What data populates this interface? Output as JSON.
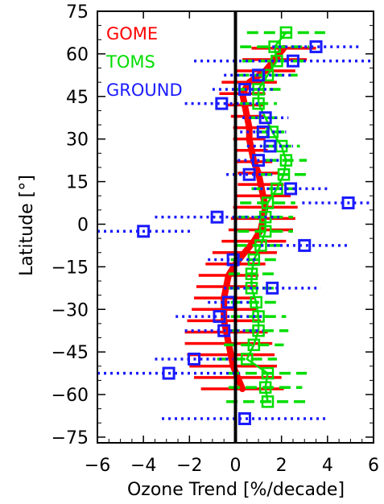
{
  "chart_data": {
    "type": "scatter",
    "title": "",
    "xlabel": "Ozone Trend [%/decade]",
    "ylabel": "Latitude [°]",
    "xlim": [
      -6,
      6
    ],
    "ylim": [
      -77,
      75
    ],
    "xticks": [
      "−6",
      "−4",
      "−2",
      "0",
      "2",
      "4",
      "6"
    ],
    "xtick_values": [
      -6,
      -4,
      -2,
      0,
      2,
      4,
      6
    ],
    "yticks": [
      "75",
      "60",
      "45",
      "30",
      "15",
      "0",
      "−15",
      "−30",
      "−45",
      "−60",
      "−75"
    ],
    "ytick_values": [
      75,
      60,
      45,
      30,
      15,
      0,
      -15,
      -30,
      -45,
      -60,
      -75
    ],
    "zero_line": 0,
    "legend_position": "top-left",
    "series": [
      {
        "name": "GOME",
        "color": "#ff0000",
        "style": "line with horizontal error bars",
        "points": [
          {
            "lat": 62,
            "x": 2.1,
            "err": 1.4
          },
          {
            "lat": 58,
            "x": 1.7,
            "err": 1.4
          },
          {
            "lat": 54,
            "x": 1.3,
            "err": 1.3
          },
          {
            "lat": 50,
            "x": 0.6,
            "err": 1.2
          },
          {
            "lat": 46,
            "x": 0.3,
            "err": 1.0
          },
          {
            "lat": 42,
            "x": 0.4,
            "err": 0.8
          },
          {
            "lat": 38,
            "x": 0.5,
            "err": 0.7
          },
          {
            "lat": 34,
            "x": 0.6,
            "err": 0.7
          },
          {
            "lat": 30,
            "x": 0.6,
            "err": 0.7
          },
          {
            "lat": 26,
            "x": 0.7,
            "err": 0.7
          },
          {
            "lat": 22,
            "x": 0.8,
            "err": 0.8
          },
          {
            "lat": 18,
            "x": 1.0,
            "err": 0.9
          },
          {
            "lat": 14,
            "x": 1.1,
            "err": 1.0
          },
          {
            "lat": 10,
            "x": 1.2,
            "err": 1.2
          },
          {
            "lat": 6,
            "x": 1.3,
            "err": 1.4
          },
          {
            "lat": 2,
            "x": 1.2,
            "err": 1.4
          },
          {
            "lat": -2,
            "x": 1.1,
            "err": 1.4
          },
          {
            "lat": -6,
            "x": 0.8,
            "err": 1.4
          },
          {
            "lat": -10,
            "x": 0.4,
            "err": 1.4
          },
          {
            "lat": -14,
            "x": 0.0,
            "err": 1.3
          },
          {
            "lat": -18,
            "x": -0.3,
            "err": 1.3
          },
          {
            "lat": -22,
            "x": -0.4,
            "err": 1.3
          },
          {
            "lat": -26,
            "x": -0.5,
            "err": 1.3
          },
          {
            "lat": -30,
            "x": -0.5,
            "err": 1.4
          },
          {
            "lat": -34,
            "x": -0.5,
            "err": 1.6
          },
          {
            "lat": -38,
            "x": -0.4,
            "err": 1.8
          },
          {
            "lat": -42,
            "x": -0.3,
            "err": 1.9
          },
          {
            "lat": -46,
            "x": -0.2,
            "err": 1.9
          },
          {
            "lat": -50,
            "x": -0.1,
            "err": 1.9
          },
          {
            "lat": -54,
            "x": 0.1,
            "err": 1.9
          },
          {
            "lat": -58,
            "x": 0.3,
            "err": 1.8
          }
        ]
      },
      {
        "name": "TOMS",
        "color": "#00dd00",
        "style": "squares with dashed error bars",
        "points": [
          {
            "lat": 67.5,
            "x": 2.2,
            "err": 1.7
          },
          {
            "lat": 62.5,
            "x": 1.7,
            "err": 1.5
          },
          {
            "lat": 57.5,
            "x": 1.8,
            "err": 1.5
          },
          {
            "lat": 52.5,
            "x": 1.4,
            "err": 1.3
          },
          {
            "lat": 47.5,
            "x": 1.0,
            "err": 1.0
          },
          {
            "lat": 42.5,
            "x": 1.0,
            "err": 0.8
          },
          {
            "lat": 37.5,
            "x": 1.3,
            "err": 0.7
          },
          {
            "lat": 32.5,
            "x": 1.6,
            "err": 0.7
          },
          {
            "lat": 27.5,
            "x": 2.0,
            "err": 0.8
          },
          {
            "lat": 22.5,
            "x": 2.2,
            "err": 0.9
          },
          {
            "lat": 17.5,
            "x": 2.1,
            "err": 1.0
          },
          {
            "lat": 12.5,
            "x": 1.8,
            "err": 1.1
          },
          {
            "lat": 7.5,
            "x": 1.4,
            "err": 1.2
          },
          {
            "lat": 2.5,
            "x": 1.3,
            "err": 1.2
          },
          {
            "lat": -2.5,
            "x": 1.3,
            "err": 1.2
          },
          {
            "lat": -7.5,
            "x": 1.1,
            "err": 1.1
          },
          {
            "lat": -12.5,
            "x": 0.8,
            "err": 1.0
          },
          {
            "lat": -17.5,
            "x": 0.7,
            "err": 1.0
          },
          {
            "lat": -22.5,
            "x": 0.7,
            "err": 1.0
          },
          {
            "lat": -27.5,
            "x": 0.9,
            "err": 1.1
          },
          {
            "lat": -32.5,
            "x": 1.0,
            "err": 1.2
          },
          {
            "lat": -37.5,
            "x": 1.0,
            "err": 1.3
          },
          {
            "lat": -42.5,
            "x": 0.8,
            "err": 1.3
          },
          {
            "lat": -47.5,
            "x": 0.5,
            "err": 1.3
          },
          {
            "lat": -52.5,
            "x": 1.4,
            "err": 1.7
          },
          {
            "lat": -57.5,
            "x": 1.3,
            "err": 1.6
          },
          {
            "lat": -62.5,
            "x": 1.4,
            "err": 1.8
          }
        ]
      },
      {
        "name": "GROUND",
        "color": "#1a1aff",
        "style": "squares with dotted error bars",
        "points": [
          {
            "lat": 62.5,
            "x": 3.5,
            "err": 1.9
          },
          {
            "lat": 57.5,
            "x": 2.5,
            "err": 4.3
          },
          {
            "lat": 52.5,
            "x": 1.0,
            "err": 1.5
          },
          {
            "lat": 47.5,
            "x": 0.4,
            "err": 1.4
          },
          {
            "lat": 42.5,
            "x": -0.6,
            "err": 1.6
          },
          {
            "lat": 37.5,
            "x": 1.3,
            "err": 1.0
          },
          {
            "lat": 32.5,
            "x": 1.2,
            "err": 1.0
          },
          {
            "lat": 27.5,
            "x": 1.5,
            "err": 1.0
          },
          {
            "lat": 22.5,
            "x": 1.0,
            "err": 0.9
          },
          {
            "lat": 17.5,
            "x": 0.6,
            "err": 1.0
          },
          {
            "lat": 12.5,
            "x": 2.4,
            "err": 1.6
          },
          {
            "lat": 7.5,
            "x": 4.9,
            "err": 2.0
          },
          {
            "lat": 2.5,
            "x": -0.8,
            "err": 2.7
          },
          {
            "lat": -2.5,
            "x": -4.0,
            "err": 2.2
          },
          {
            "lat": -7.5,
            "x": 3.0,
            "err": 1.9
          },
          {
            "lat": -12.5,
            "x": -0.1,
            "err": 1.1
          },
          {
            "lat": -22.5,
            "x": 1.6,
            "err": 2.1
          },
          {
            "lat": -27.5,
            "x": -0.3,
            "err": 0.9
          },
          {
            "lat": -32.5,
            "x": -0.7,
            "err": 1.9
          },
          {
            "lat": -37.5,
            "x": -0.5,
            "err": 1.7
          },
          {
            "lat": -47.5,
            "x": -1.8,
            "err": 1.7
          },
          {
            "lat": -52.5,
            "x": -2.9,
            "err": 3.1
          },
          {
            "lat": -68.5,
            "x": 0.4,
            "err": 3.6
          }
        ]
      }
    ]
  }
}
